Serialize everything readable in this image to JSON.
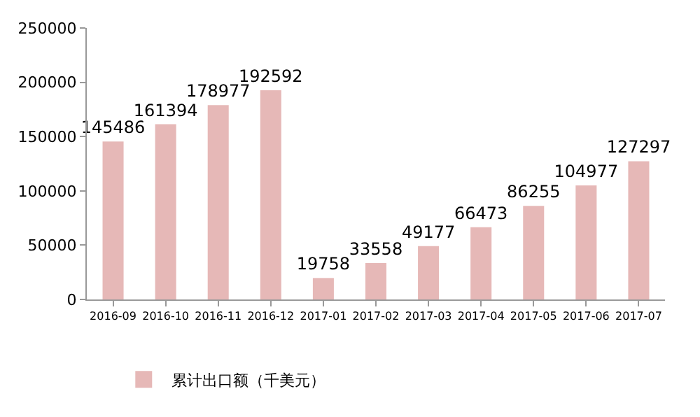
{
  "chart_data": {
    "type": "bar",
    "categories": [
      "2016-09",
      "2016-10",
      "2016-11",
      "2016-12",
      "2017-01",
      "2017-02",
      "2017-03",
      "2017-04",
      "2017-05",
      "2017-06",
      "2017-07"
    ],
    "series": [
      {
        "name": "累计出口额（千美元）",
        "color": "#e6b8b7",
        "values": [
          145486,
          161394,
          178977,
          192592,
          19758,
          33558,
          49177,
          66473,
          86255,
          104977,
          127297
        ]
      }
    ],
    "ylim": [
      0,
      250000
    ],
    "yticks": [
      0,
      50000,
      100000,
      150000,
      200000,
      250000
    ],
    "data_labels": true,
    "grid": false,
    "legend": "bottom left"
  }
}
